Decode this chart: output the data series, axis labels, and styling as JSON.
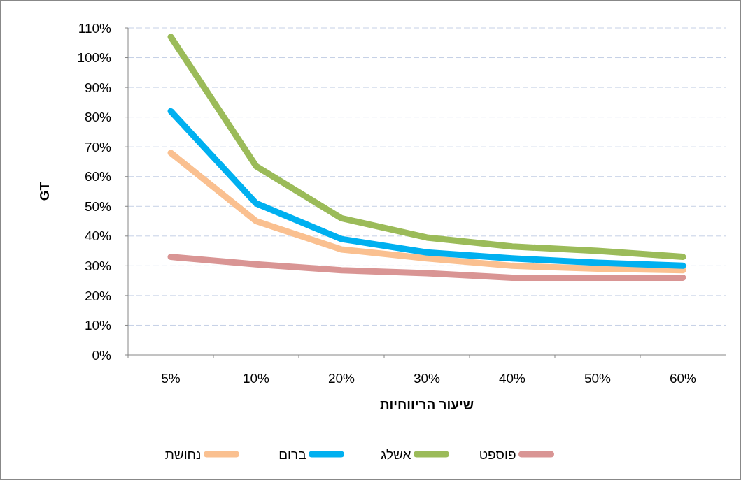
{
  "chart_data": {
    "type": "line",
    "ylabel": "GT",
    "xlabel": "שיעור הריווחיות",
    "categories": [
      "5%",
      "10%",
      "20%",
      "30%",
      "40%",
      "50%",
      "60%"
    ],
    "series": [
      {
        "name": "נחושת",
        "color": "#fac090",
        "values": [
          68,
          45,
          35.5,
          32.5,
          30,
          29,
          28.5
        ]
      },
      {
        "name": "ברום",
        "color": "#00b0f0",
        "values": [
          82,
          51,
          39,
          34.5,
          32.5,
          31,
          30
        ]
      },
      {
        "name": "אשלג",
        "color": "#9bbb59",
        "values": [
          107,
          63.5,
          46,
          39.5,
          36.5,
          35,
          33
        ]
      },
      {
        "name": "פוספט",
        "color": "#d99594",
        "values": [
          33,
          30.5,
          28.5,
          27.5,
          26,
          26,
          26
        ]
      }
    ],
    "ylim": [
      0,
      110
    ],
    "yticks": [
      {
        "value": 0,
        "label": "0%"
      },
      {
        "value": 10,
        "label": "10%"
      },
      {
        "value": 20,
        "label": "20%"
      },
      {
        "value": 30,
        "label": "30%"
      },
      {
        "value": 40,
        "label": "40%"
      },
      {
        "value": 50,
        "label": "50%"
      },
      {
        "value": 60,
        "label": "60%"
      },
      {
        "value": 70,
        "label": "70%"
      },
      {
        "value": 80,
        "label": "80%"
      },
      {
        "value": 90,
        "label": "90%"
      },
      {
        "value": 100,
        "label": "100%"
      },
      {
        "value": 110,
        "label": "110%"
      }
    ],
    "grid": "y",
    "legend": "bottom",
    "marker": "none",
    "line_style": "solid"
  }
}
